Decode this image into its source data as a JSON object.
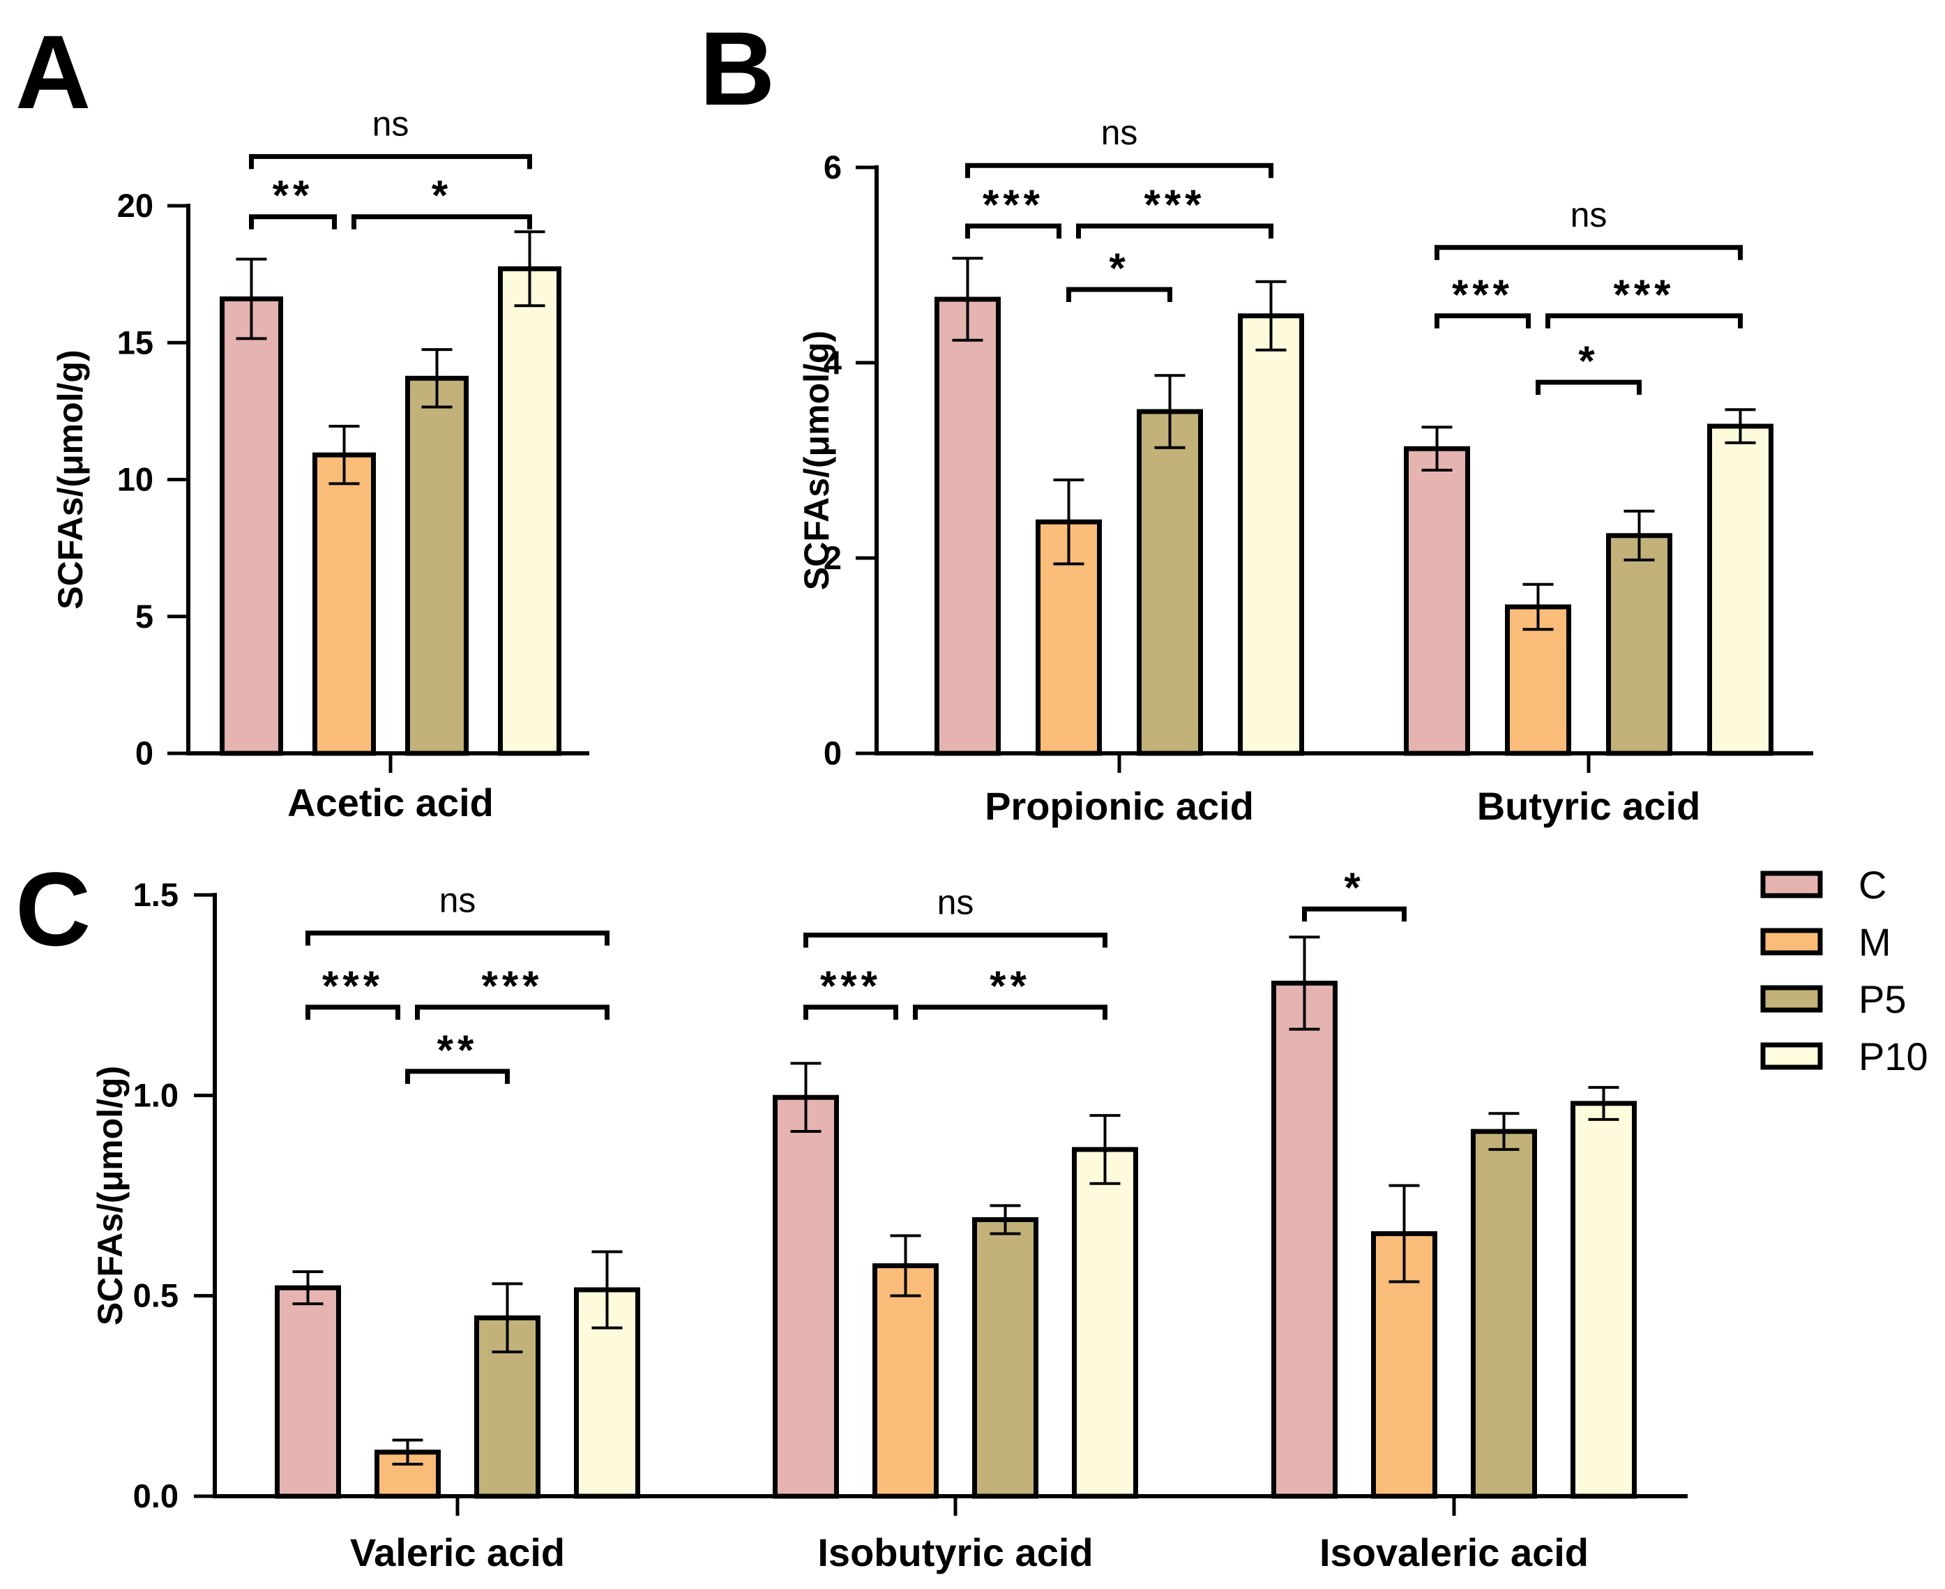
{
  "colors": {
    "C": "#e5b3b0",
    "M": "#f9bd79",
    "P5": "#c2b27a",
    "P10": "#fefbdc",
    "stroke": "#000000"
  },
  "chart_data": [
    {
      "panel": "A",
      "type": "bar",
      "ylabel": "SCFAs/(μmol/g)",
      "ylim": [
        0,
        20
      ],
      "yticks": [
        0,
        5,
        10,
        15,
        20
      ],
      "ytick_labels": [
        "0",
        "5",
        "10",
        "15",
        "20"
      ],
      "categories": [
        "Acetic acid"
      ],
      "series": [
        {
          "name": "C",
          "values": [
            16.6
          ],
          "errors": [
            1.45
          ]
        },
        {
          "name": "M",
          "values": [
            10.9
          ],
          "errors": [
            1.05
          ]
        },
        {
          "name": "P5",
          "values": [
            13.7
          ],
          "errors": [
            1.05
          ]
        },
        {
          "name": "P10",
          "values": [
            17.7
          ],
          "errors": [
            1.35
          ]
        }
      ],
      "significance": [
        {
          "category": "Acetic acid",
          "from": "C",
          "to": "M",
          "label": "**",
          "level_value": 19.6
        },
        {
          "category": "Acetic acid",
          "from": "M",
          "to": "P10",
          "label": "*",
          "level_value": 19.6
        },
        {
          "category": "Acetic acid",
          "from": "C",
          "to": "P10",
          "label": "ns",
          "level_value": 21.8
        }
      ]
    },
    {
      "panel": "B",
      "type": "bar",
      "ylabel": "SCFAs/(μmol/g)",
      "ylim": [
        0,
        6
      ],
      "yticks": [
        0,
        2,
        4,
        6
      ],
      "ytick_labels": [
        "0",
        "2",
        "4",
        "6"
      ],
      "categories": [
        "Propionic acid",
        "Butyric acid"
      ],
      "series": [
        {
          "name": "C",
          "values": [
            4.65,
            3.12
          ],
          "errors": [
            0.42,
            0.22
          ]
        },
        {
          "name": "M",
          "values": [
            2.37,
            1.5
          ],
          "errors": [
            0.43,
            0.23
          ]
        },
        {
          "name": "P5",
          "values": [
            3.5,
            2.23
          ],
          "errors": [
            0.37,
            0.25
          ]
        },
        {
          "name": "P10",
          "values": [
            4.48,
            3.35
          ],
          "errors": [
            0.35,
            0.17
          ]
        }
      ],
      "significance": [
        {
          "category": "Propionic acid",
          "from": "C",
          "to": "M",
          "label": "***",
          "level_value": 5.4
        },
        {
          "category": "Propionic acid",
          "from": "M",
          "to": "P10",
          "label": "***",
          "level_value": 5.4
        },
        {
          "category": "Propionic acid",
          "from": "M",
          "to": "P5",
          "label": "*",
          "level_value": 4.75
        },
        {
          "category": "Propionic acid",
          "from": "C",
          "to": "P10",
          "label": "ns",
          "level_value": 6.02
        },
        {
          "category": "Butyric acid",
          "from": "C",
          "to": "M",
          "label": "***",
          "level_value": 4.48
        },
        {
          "category": "Butyric acid",
          "from": "M",
          "to": "P10",
          "label": "***",
          "level_value": 4.48
        },
        {
          "category": "Butyric acid",
          "from": "M",
          "to": "P5",
          "label": "*",
          "level_value": 3.8
        },
        {
          "category": "Butyric acid",
          "from": "C",
          "to": "P10",
          "label": "ns",
          "level_value": 5.18
        }
      ]
    },
    {
      "panel": "C",
      "type": "bar",
      "ylabel": "SCFAs/(μmol/g)",
      "ylim": [
        0,
        1.5
      ],
      "yticks": [
        0,
        0.5,
        1.0,
        1.5
      ],
      "ytick_labels": [
        "0.0",
        "0.5",
        "1.0",
        "1.5"
      ],
      "categories": [
        "Valeric acid",
        "Isobutyric acid",
        "Isovaleric acid"
      ],
      "series": [
        {
          "name": "C",
          "values": [
            0.52,
            0.995,
            1.28
          ],
          "errors": [
            0.04,
            0.085,
            0.115
          ]
        },
        {
          "name": "M",
          "values": [
            0.11,
            0.575,
            0.655
          ],
          "errors": [
            0.03,
            0.075,
            0.12
          ]
        },
        {
          "name": "P5",
          "values": [
            0.445,
            0.69,
            0.91
          ],
          "errors": [
            0.085,
            0.035,
            0.045
          ]
        },
        {
          "name": "P10",
          "values": [
            0.515,
            0.865,
            0.98
          ],
          "errors": [
            0.095,
            0.085,
            0.04
          ]
        }
      ],
      "significance": [
        {
          "category": "Valeric acid",
          "from": "C",
          "to": "M",
          "label": "***",
          "level_value": 1.22
        },
        {
          "category": "Valeric acid",
          "from": "M",
          "to": "P10",
          "label": "***",
          "level_value": 1.22
        },
        {
          "category": "Valeric acid",
          "from": "M",
          "to": "P5",
          "label": "**",
          "level_value": 1.06
        },
        {
          "category": "Valeric acid",
          "from": "C",
          "to": "P10",
          "label": "ns",
          "level_value": 1.405
        },
        {
          "category": "Isobutyric acid",
          "from": "C",
          "to": "M",
          "label": "***",
          "level_value": 1.22
        },
        {
          "category": "Isobutyric acid",
          "from": "M",
          "to": "P10",
          "label": "**",
          "level_value": 1.22
        },
        {
          "category": "Isobutyric acid",
          "from": "C",
          "to": "P10",
          "label": "ns",
          "level_value": 1.4
        },
        {
          "category": "Isovaleric acid",
          "from": "C",
          "to": "M",
          "label": "*",
          "level_value": 1.465
        }
      ]
    }
  ],
  "legend": {
    "placement": "right of panel C",
    "entries": [
      "C",
      "M",
      "P5",
      "P10"
    ]
  }
}
